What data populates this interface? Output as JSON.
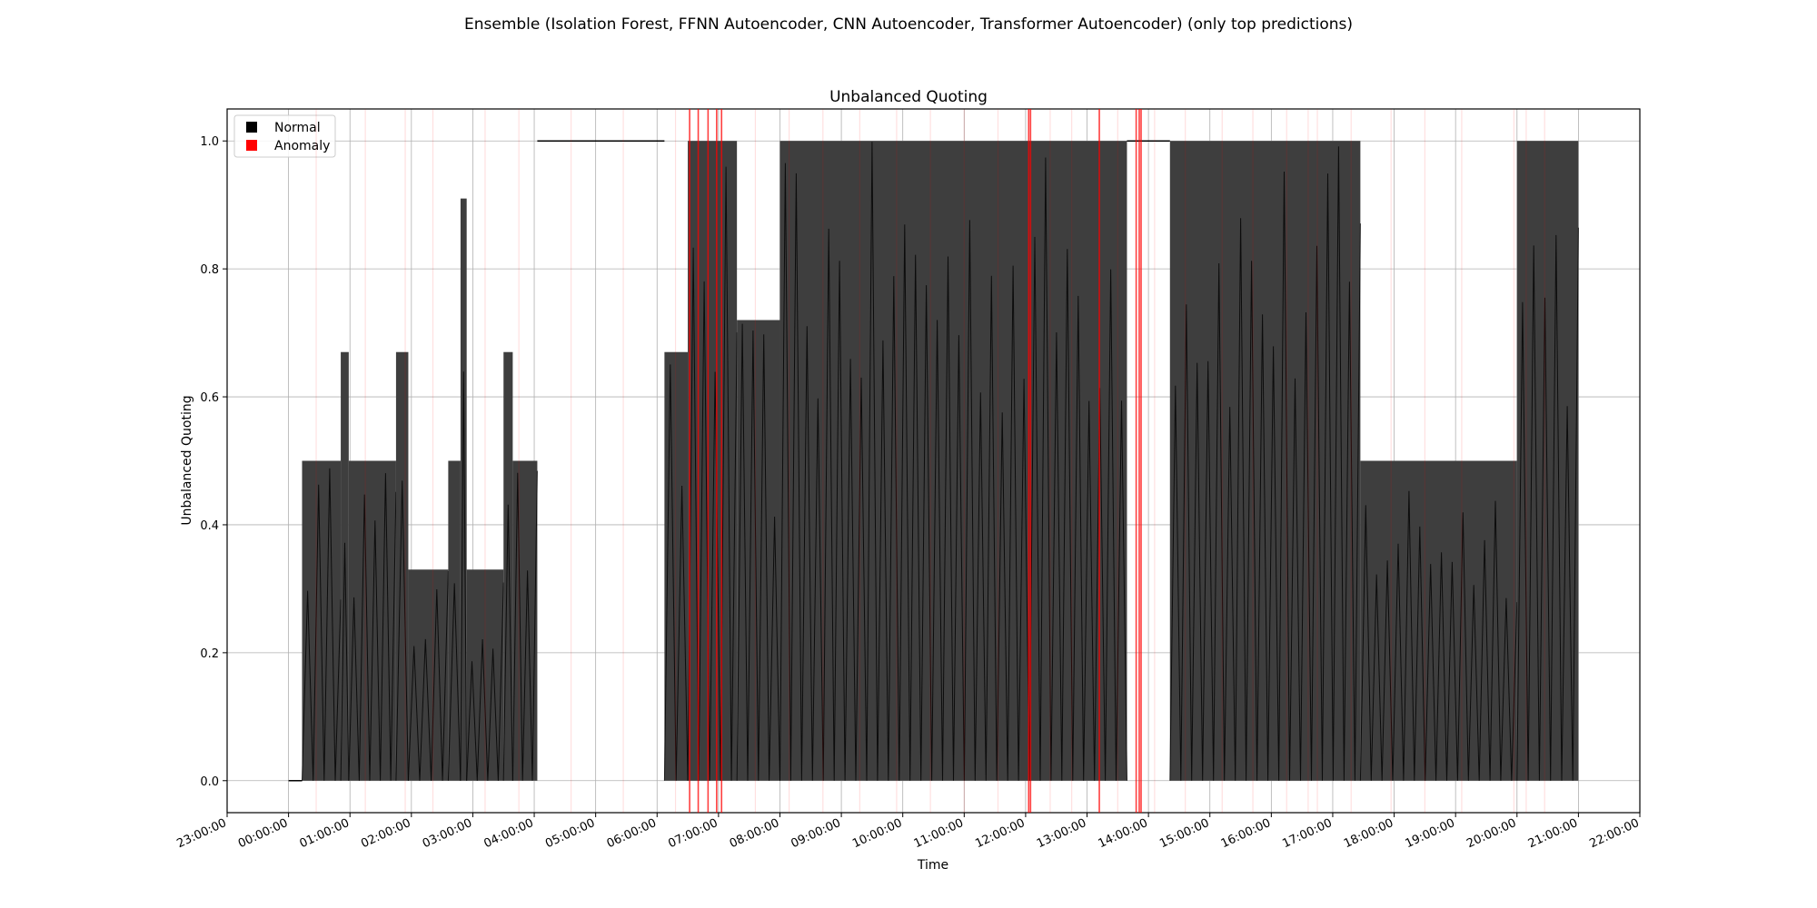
{
  "figure": {
    "suptitle": "Ensemble (Isolation Forest, FFNN Autoencoder, CNN Autoencoder, Transformer Autoencoder) (only top predictions)"
  },
  "chart_data": {
    "type": "line",
    "title": "Unbalanced Quoting",
    "xlabel": "Time",
    "ylabel": "Unbalanced Quoting",
    "x_ticks": [
      "23:00:00",
      "00:00:00",
      "01:00:00",
      "02:00:00",
      "03:00:00",
      "04:00:00",
      "05:00:00",
      "06:00:00",
      "07:00:00",
      "08:00:00",
      "09:00:00",
      "10:00:00",
      "11:00:00",
      "12:00:00",
      "13:00:00",
      "14:00:00",
      "15:00:00",
      "16:00:00",
      "17:00:00",
      "18:00:00",
      "19:00:00",
      "20:00:00",
      "21:00:00",
      "22:00:00"
    ],
    "x_range_hours": [
      -1,
      22
    ],
    "y_ticks": [
      "0.0",
      "0.2",
      "0.4",
      "0.6",
      "0.8",
      "1.0"
    ],
    "ylim": [
      -0.05,
      1.05
    ],
    "grid": true,
    "legend": {
      "placement": "top-left",
      "entries": [
        {
          "label": "Normal",
          "color": "#000000"
        },
        {
          "label": "Anomaly",
          "color": "#ff0000"
        }
      ]
    },
    "series": [
      {
        "color": "#000000",
        "segments": [
          {
            "start_h": 0.0,
            "end_h": 0.22,
            "low": 0.0,
            "high": 0.0
          },
          {
            "start_h": 0.22,
            "end_h": 0.85,
            "low": 0.0,
            "high": 0.5
          },
          {
            "start_h": 0.85,
            "end_h": 0.98,
            "low": 0.0,
            "high": 0.67
          },
          {
            "start_h": 0.98,
            "end_h": 1.75,
            "low": 0.0,
            "high": 0.5
          },
          {
            "start_h": 1.75,
            "end_h": 1.95,
            "low": 0.0,
            "high": 0.67
          },
          {
            "start_h": 1.95,
            "end_h": 2.6,
            "low": 0.0,
            "high": 0.33
          },
          {
            "start_h": 2.6,
            "end_h": 2.8,
            "low": 0.0,
            "high": 0.5
          },
          {
            "start_h": 2.8,
            "end_h": 2.9,
            "low": 0.0,
            "high": 0.91
          },
          {
            "start_h": 2.9,
            "end_h": 3.5,
            "low": 0.0,
            "high": 0.33
          },
          {
            "start_h": 3.5,
            "end_h": 3.65,
            "low": 0.0,
            "high": 0.67
          },
          {
            "start_h": 3.65,
            "end_h": 4.05,
            "low": 0.0,
            "high": 0.5
          },
          {
            "start_h": 4.05,
            "end_h": 6.12,
            "low": 1.0,
            "high": 1.0
          },
          {
            "start_h": 6.12,
            "end_h": 6.5,
            "low": 0.0,
            "high": 0.67
          },
          {
            "start_h": 6.5,
            "end_h": 7.3,
            "low": 0.0,
            "high": 1.0
          },
          {
            "start_h": 7.3,
            "end_h": 8.0,
            "low": 0.0,
            "high": 0.72
          },
          {
            "start_h": 8.0,
            "end_h": 13.65,
            "low": 0.0,
            "high": 1.0
          },
          {
            "start_h": 13.65,
            "end_h": 14.35,
            "low": 1.0,
            "high": 1.0
          },
          {
            "start_h": 14.35,
            "end_h": 17.45,
            "low": 0.0,
            "high": 1.0
          },
          {
            "start_h": 17.45,
            "end_h": 20.0,
            "low": 0.0,
            "high": 0.5
          },
          {
            "start_h": 20.0,
            "end_h": 21.0,
            "low": 0.0,
            "high": 1.0
          }
        ]
      }
    ],
    "anomaly_markers_h": [
      6.53,
      6.67,
      6.83,
      6.97,
      7.05,
      12.05,
      12.08,
      13.2,
      13.8,
      13.85,
      13.88
    ],
    "faint_anomaly_markers_h": [
      0.45,
      1.25,
      1.9,
      2.35,
      3.2,
      3.75,
      4.6,
      5.45,
      6.3,
      7.6,
      8.15,
      8.7,
      9.3,
      9.9,
      10.45,
      11.0,
      11.55,
      12.4,
      12.75,
      13.5,
      14.1,
      14.6,
      15.2,
      15.7,
      16.25,
      16.6,
      16.75,
      17.3,
      17.95,
      18.5,
      19.1,
      19.95,
      20.15,
      20.45
    ]
  }
}
